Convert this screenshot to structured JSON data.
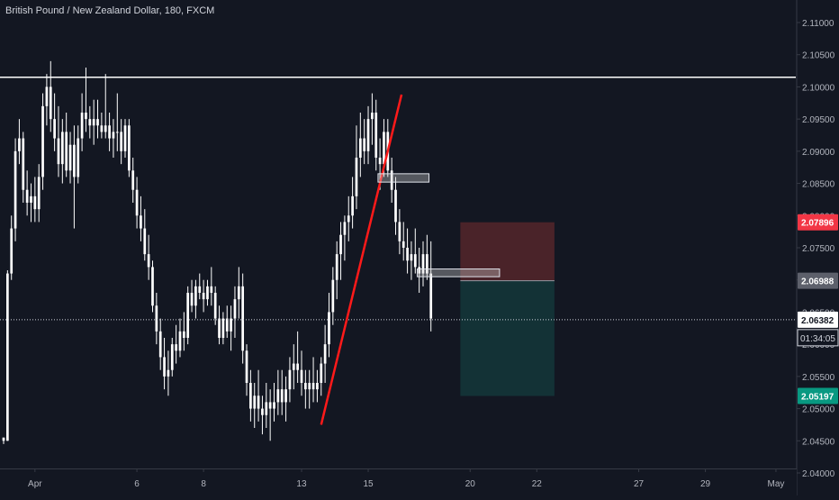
{
  "header": {
    "symbol_title": "British Pound / New Zealand Dollar, 180, FXCM"
  },
  "colors": {
    "background": "#131722",
    "candle": "#ffffff",
    "axis_text": "#b2b5be",
    "trend_line": "#ff1a1a",
    "resistance_line": "#ffffff",
    "stop_zone": "#4a2329",
    "target_zone": "#133236",
    "stop_badge": "#f23645",
    "target_badge": "#089981",
    "entry_badge": "#5d606b",
    "current_badge": "#ffffff"
  },
  "chart_data": {
    "type": "candlestick",
    "title": "British Pound / New Zealand Dollar, 180, FXCM",
    "xlabel": "",
    "ylabel": "",
    "y_axis": {
      "ylim": [
        2.0365,
        2.1135
      ],
      "ticks": [
        "2.11000",
        "2.10500",
        "2.10000",
        "2.09500",
        "2.09000",
        "2.08500",
        "2.08000",
        "2.07500",
        "2.07000",
        "2.06500",
        "2.06000",
        "2.05500",
        "2.05000",
        "2.04500",
        "2.04000"
      ],
      "tick_values": [
        2.11,
        2.105,
        2.1,
        2.095,
        2.09,
        2.085,
        2.08,
        2.075,
        2.07,
        2.065,
        2.06,
        2.055,
        2.05,
        2.045,
        2.04
      ]
    },
    "x_axis": {
      "bar_range": [
        0,
        214
      ],
      "ticks": [
        {
          "label": "Apr",
          "bar": 8
        },
        {
          "label": "6",
          "bar": 34
        },
        {
          "label": "8",
          "bar": 51
        },
        {
          "label": "13",
          "bar": 76
        },
        {
          "label": "15",
          "bar": 93
        },
        {
          "label": "20",
          "bar": 119
        },
        {
          "label": "22",
          "bar": 136
        },
        {
          "label": "27",
          "bar": 162
        },
        {
          "label": "29",
          "bar": 179
        },
        {
          "label": "May",
          "bar": 197
        }
      ]
    },
    "candles": [
      [
        2.0455,
        2.0455,
        2.0445,
        2.045
      ],
      [
        2.045,
        2.0715,
        2.045,
        2.071
      ],
      [
        2.071,
        2.08,
        2.07,
        2.078
      ],
      [
        2.078,
        2.092,
        2.076,
        2.09
      ],
      [
        2.09,
        2.095,
        2.088,
        2.092
      ],
      [
        2.092,
        2.093,
        2.082,
        2.084
      ],
      [
        2.084,
        2.087,
        2.08,
        2.082
      ],
      [
        2.082,
        2.085,
        2.079,
        2.083
      ],
      [
        2.083,
        2.086,
        2.079,
        2.081
      ],
      [
        2.081,
        2.088,
        2.079,
        2.086
      ],
      [
        2.086,
        2.099,
        2.084,
        2.097
      ],
      [
        2.097,
        2.102,
        2.094,
        2.1
      ],
      [
        2.1,
        2.104,
        2.093,
        2.095
      ],
      [
        2.095,
        2.099,
        2.09,
        2.092
      ],
      [
        2.092,
        2.097,
        2.086,
        2.088
      ],
      [
        2.088,
        2.095,
        2.085,
        2.093
      ],
      [
        2.093,
        2.096,
        2.086,
        2.087
      ],
      [
        2.087,
        2.093,
        2.085,
        2.091
      ],
      [
        2.091,
        2.094,
        2.078,
        2.086
      ],
      [
        2.086,
        2.094,
        2.085,
        2.092
      ],
      [
        2.092,
        2.099,
        2.09,
        2.096
      ],
      [
        2.096,
        2.103,
        2.093,
        2.095
      ],
      [
        2.095,
        2.097,
        2.092,
        2.094
      ],
      [
        2.094,
        2.098,
        2.091,
        2.095
      ],
      [
        2.095,
        2.098,
        2.092,
        2.094
      ],
      [
        2.094,
        2.096,
        2.092,
        2.093
      ],
      [
        2.093,
        2.102,
        2.092,
        2.094
      ],
      [
        2.094,
        2.096,
        2.09,
        2.092
      ],
      [
        2.092,
        2.095,
        2.089,
        2.093
      ],
      [
        2.093,
        2.099,
        2.09,
        2.093
      ],
      [
        2.093,
        2.095,
        2.088,
        2.09
      ],
      [
        2.09,
        2.095,
        2.089,
        2.094
      ],
      [
        2.094,
        2.095,
        2.086,
        2.087
      ],
      [
        2.087,
        2.089,
        2.082,
        2.084
      ],
      [
        2.084,
        2.086,
        2.078,
        2.08
      ],
      [
        2.08,
        2.083,
        2.076,
        2.078
      ],
      [
        2.078,
        2.081,
        2.073,
        2.074
      ],
      [
        2.074,
        2.077,
        2.07,
        2.072
      ],
      [
        2.072,
        2.073,
        2.065,
        2.066
      ],
      [
        2.066,
        2.068,
        2.06,
        2.062
      ],
      [
        2.062,
        2.064,
        2.056,
        2.058
      ],
      [
        2.058,
        2.061,
        2.053,
        2.055
      ],
      [
        2.055,
        2.059,
        2.052,
        2.056
      ],
      [
        2.056,
        2.061,
        2.055,
        2.06
      ],
      [
        2.06,
        2.063,
        2.057,
        2.059
      ],
      [
        2.059,
        2.064,
        2.058,
        2.062
      ],
      [
        2.062,
        2.065,
        2.059,
        2.061
      ],
      [
        2.061,
        2.069,
        2.06,
        2.068
      ],
      [
        2.068,
        2.07,
        2.065,
        2.066
      ],
      [
        2.066,
        2.07,
        2.064,
        2.069
      ],
      [
        2.069,
        2.071,
        2.067,
        2.068
      ],
      [
        2.068,
        2.07,
        2.065,
        2.067
      ],
      [
        2.067,
        2.07,
        2.066,
        2.069
      ],
      [
        2.069,
        2.072,
        2.066,
        2.068
      ],
      [
        2.068,
        2.069,
        2.063,
        2.064
      ],
      [
        2.064,
        2.066,
        2.06,
        2.061
      ],
      [
        2.061,
        2.065,
        2.06,
        2.064
      ],
      [
        2.064,
        2.066,
        2.061,
        2.062
      ],
      [
        2.062,
        2.066,
        2.059,
        2.064
      ],
      [
        2.064,
        2.069,
        2.061,
        2.067
      ],
      [
        2.067,
        2.072,
        2.064,
        2.069
      ],
      [
        2.069,
        2.071,
        2.057,
        2.059
      ],
      [
        2.059,
        2.06,
        2.052,
        2.054
      ],
      [
        2.054,
        2.056,
        2.048,
        2.05
      ],
      [
        2.05,
        2.054,
        2.047,
        2.052
      ],
      [
        2.052,
        2.056,
        2.048,
        2.05
      ],
      [
        2.05,
        2.052,
        2.046,
        2.049
      ],
      [
        2.049,
        2.054,
        2.047,
        2.051
      ],
      [
        2.051,
        2.053,
        2.045,
        2.05
      ],
      [
        2.05,
        2.054,
        2.048,
        2.051
      ],
      [
        2.051,
        2.056,
        2.049,
        2.053
      ],
      [
        2.053,
        2.056,
        2.049,
        2.051
      ],
      [
        2.051,
        2.055,
        2.048,
        2.053
      ],
      [
        2.053,
        2.058,
        2.051,
        2.056
      ],
      [
        2.056,
        2.06,
        2.053,
        2.057
      ],
      [
        2.057,
        2.062,
        2.054,
        2.056
      ],
      [
        2.056,
        2.059,
        2.052,
        2.054
      ],
      [
        2.054,
        2.056,
        2.05,
        2.053
      ],
      [
        2.053,
        2.056,
        2.05,
        2.054
      ],
      [
        2.054,
        2.058,
        2.051,
        2.053
      ],
      [
        2.053,
        2.056,
        2.051,
        2.054
      ],
      [
        2.054,
        2.058,
        2.052,
        2.057
      ],
      [
        2.057,
        2.063,
        2.054,
        2.06
      ],
      [
        2.06,
        2.068,
        2.058,
        2.065
      ],
      [
        2.065,
        2.072,
        2.063,
        2.07
      ],
      [
        2.07,
        2.076,
        2.067,
        2.074
      ],
      [
        2.074,
        2.079,
        2.07,
        2.077
      ],
      [
        2.077,
        2.08,
        2.073,
        2.079
      ],
      [
        2.079,
        2.083,
        2.076,
        2.08
      ],
      [
        2.08,
        2.086,
        2.078,
        2.083
      ],
      [
        2.083,
        2.094,
        2.081,
        2.089
      ],
      [
        2.089,
        2.096,
        2.086,
        2.092
      ],
      [
        2.092,
        2.095,
        2.088,
        2.09
      ],
      [
        2.09,
        2.097,
        2.088,
        2.095
      ],
      [
        2.095,
        2.099,
        2.091,
        2.096
      ],
      [
        2.096,
        2.098,
        2.087,
        2.089
      ],
      [
        2.089,
        2.092,
        2.084,
        2.088
      ],
      [
        2.088,
        2.095,
        2.086,
        2.093
      ],
      [
        2.093,
        2.095,
        2.086,
        2.087
      ],
      [
        2.087,
        2.089,
        2.082,
        2.084
      ],
      [
        2.084,
        2.086,
        2.077,
        2.079
      ],
      [
        2.079,
        2.081,
        2.074,
        2.076
      ],
      [
        2.076,
        2.079,
        2.073,
        2.075
      ],
      [
        2.075,
        2.078,
        2.071,
        2.073
      ],
      [
        2.073,
        2.076,
        2.07,
        2.074
      ],
      [
        2.074,
        2.078,
        2.071,
        2.072
      ],
      [
        2.072,
        2.075,
        2.068,
        2.071
      ],
      [
        2.071,
        2.076,
        2.069,
        2.074
      ],
      [
        2.074,
        2.077,
        2.07,
        2.071
      ],
      [
        2.071,
        2.076,
        2.062,
        2.064
      ]
    ],
    "annotations": {
      "resistance_level": 2.1015,
      "trend_line": {
        "from": {
          "bar": 81,
          "price": 2.0475
        },
        "to": {
          "bar": 101.5,
          "price": 2.0988
        }
      },
      "boxes": [
        {
          "bar_from": 95.5,
          "bar_to": 108.5,
          "price_top": 2.0865,
          "price_bottom": 2.0852
        },
        {
          "bar_from": 105.5,
          "bar_to": 126.5,
          "price_top": 2.0717,
          "price_bottom": 2.0705
        }
      ],
      "position": {
        "bar_from": 116.5,
        "bar_to": 140.5,
        "entry": 2.06988,
        "stop": 2.07896,
        "target": 2.05197
      },
      "current_price": 2.06382
    },
    "price_labels": {
      "stop": "2.07896",
      "entry": "2.06988",
      "current": "2.06382",
      "countdown": "01:34:05",
      "target": "2.05197"
    },
    "grid": false,
    "legend": "none"
  }
}
